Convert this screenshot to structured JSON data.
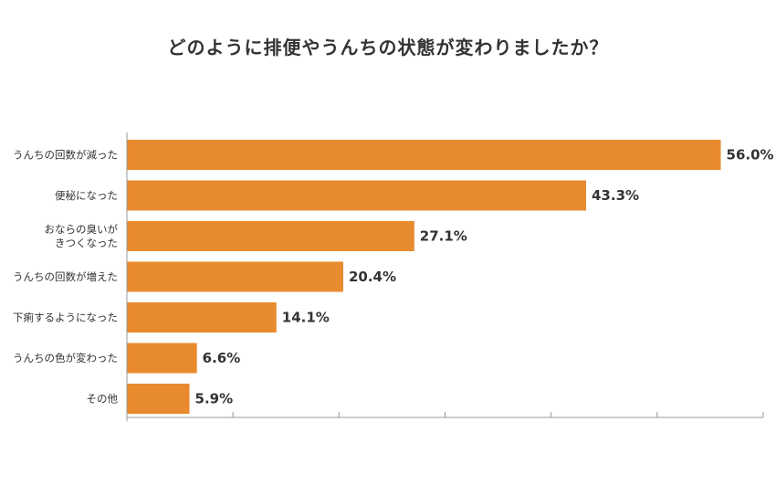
{
  "chart_data": {
    "type": "bar",
    "orientation": "horizontal",
    "title": "どのように排便やうんちの状態が変わりましたか？",
    "categories": [
      [
        "うんちの回数が減った"
      ],
      [
        "便秘になった"
      ],
      [
        "おならの臭いが",
        "きつくなった"
      ],
      [
        "うんちの回数が増えた"
      ],
      [
        "下痢するようになった"
      ],
      [
        "うんちの色が変わった"
      ],
      [
        "その他"
      ]
    ],
    "values": [
      56.0,
      43.3,
      27.1,
      20.4,
      14.1,
      6.6,
      5.9
    ],
    "value_labels": [
      "56.0%",
      "43.3%",
      "27.1%",
      "20.4%",
      "14.1%",
      "6.6%",
      "5.9%"
    ],
    "xlim": [
      0,
      60
    ],
    "xticks": [
      0,
      10,
      20,
      30,
      40,
      50,
      60
    ],
    "xtick_labels_shown": false,
    "bar_color": "#E88B2E",
    "xlabel": "",
    "ylabel": "",
    "legend": "none"
  }
}
